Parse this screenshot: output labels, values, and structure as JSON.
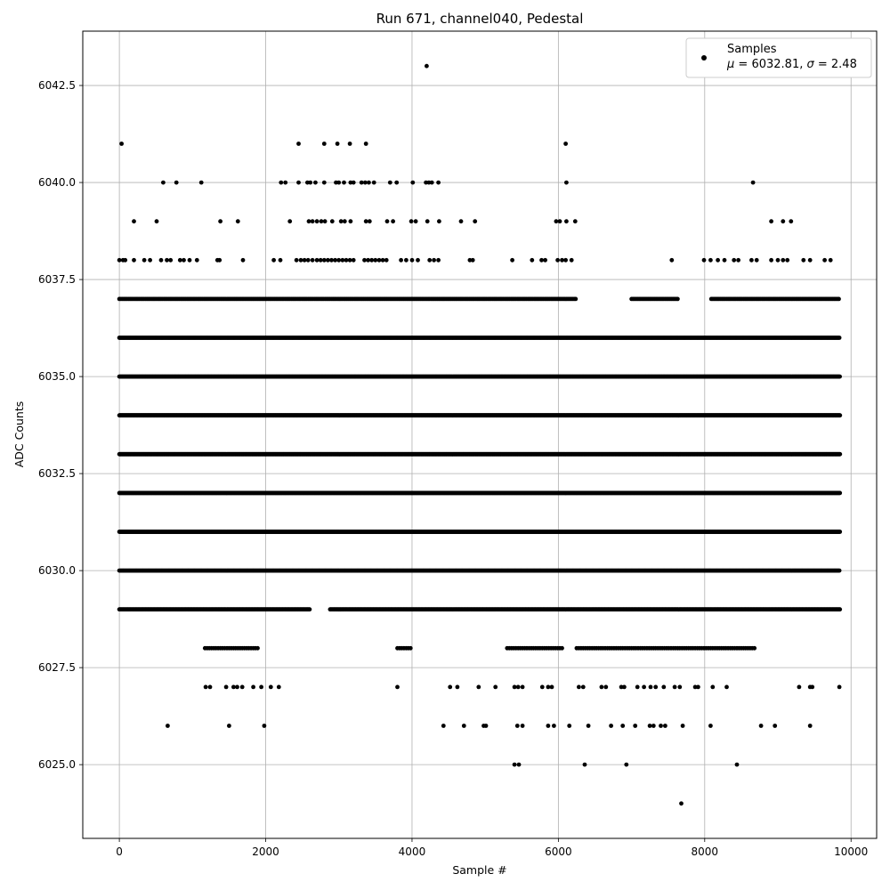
{
  "chart_data": {
    "type": "scatter",
    "title": "Run 671, channel040, Pedestal",
    "xlabel": "Sample #",
    "ylabel": "ADC Counts",
    "xlim": [
      -500,
      10350
    ],
    "ylim": [
      6023.1,
      6043.9
    ],
    "grid": true,
    "legend_placement": "top-right",
    "marker_color": "#000000",
    "x_tick_labels": [
      "0",
      "2000",
      "4000",
      "6000",
      "8000",
      "10000"
    ],
    "y_tick_labels": [
      "6025.0",
      "6027.5",
      "6030.0",
      "6032.5",
      "6035.0",
      "6037.5",
      "6040.0",
      "6042.5"
    ],
    "legend": {
      "marker": "dot",
      "series_name": "Samples",
      "stats": {
        "mu_symbol": "μ",
        "mu": "6032.81",
        "sigma_symbol": "σ",
        "sigma": "2.48"
      }
    },
    "series": [
      {
        "name": "Samples",
        "points": [
          [
            4200,
            6043
          ],
          [
            30,
            6041
          ],
          [
            2450,
            6041
          ],
          [
            2800,
            6041
          ],
          [
            2980,
            6041
          ],
          [
            3150,
            6041
          ],
          [
            3370,
            6041
          ],
          [
            6100,
            6041
          ],
          [
            600,
            6040
          ],
          [
            780,
            6040
          ],
          [
            1120,
            6040
          ],
          [
            2210,
            6040
          ],
          [
            2270,
            6040
          ],
          [
            2450,
            6040
          ],
          [
            2570,
            6040
          ],
          [
            2610,
            6040
          ],
          [
            2680,
            6040
          ],
          [
            2800,
            6040
          ],
          [
            2960,
            6040
          ],
          [
            3000,
            6040
          ],
          [
            3070,
            6040
          ],
          [
            3160,
            6040
          ],
          [
            3200,
            6040
          ],
          [
            3310,
            6040
          ],
          [
            3360,
            6040
          ],
          [
            3410,
            6040
          ],
          [
            3480,
            6040
          ],
          [
            3700,
            6040
          ],
          [
            3790,
            6040
          ],
          [
            4010,
            6040
          ],
          [
            4190,
            6040
          ],
          [
            4230,
            6040
          ],
          [
            4270,
            6040
          ],
          [
            4360,
            6040
          ],
          [
            6110,
            6040
          ],
          [
            8660,
            6040
          ],
          [
            200,
            6039
          ],
          [
            510,
            6039
          ],
          [
            1380,
            6039
          ],
          [
            1620,
            6039
          ],
          [
            2330,
            6039
          ],
          [
            2590,
            6039
          ],
          [
            2640,
            6039
          ],
          [
            2700,
            6039
          ],
          [
            2760,
            6039
          ],
          [
            2810,
            6039
          ],
          [
            2910,
            6039
          ],
          [
            3030,
            6039
          ],
          [
            3080,
            6039
          ],
          [
            3160,
            6039
          ],
          [
            3370,
            6039
          ],
          [
            3420,
            6039
          ],
          [
            3660,
            6039
          ],
          [
            3740,
            6039
          ],
          [
            3990,
            6039
          ],
          [
            4050,
            6039
          ],
          [
            4210,
            6039
          ],
          [
            4370,
            6039
          ],
          [
            4670,
            6039
          ],
          [
            4860,
            6039
          ],
          [
            5970,
            6039
          ],
          [
            6020,
            6039
          ],
          [
            6110,
            6039
          ],
          [
            6230,
            6039
          ],
          [
            8910,
            6039
          ],
          [
            9070,
            6039
          ],
          [
            9180,
            6039
          ],
          [
            0,
            6038
          ],
          [
            50,
            6038
          ],
          [
            80,
            6038
          ],
          [
            200,
            6038
          ],
          [
            340,
            6038
          ],
          [
            420,
            6038
          ],
          [
            570,
            6038
          ],
          [
            650,
            6038
          ],
          [
            700,
            6038
          ],
          [
            830,
            6038
          ],
          [
            880,
            6038
          ],
          [
            960,
            6038
          ],
          [
            1060,
            6038
          ],
          [
            1340,
            6038
          ],
          [
            1370,
            6038
          ],
          [
            1690,
            6038
          ],
          [
            2110,
            6038
          ],
          [
            2200,
            6038
          ],
          [
            2420,
            6038
          ],
          [
            2480,
            6038
          ],
          [
            2530,
            6038
          ],
          [
            2580,
            6038
          ],
          [
            2640,
            6038
          ],
          [
            2700,
            6038
          ],
          [
            2750,
            6038
          ],
          [
            2800,
            6038
          ],
          [
            2850,
            6038
          ],
          [
            2900,
            6038
          ],
          [
            2950,
            6038
          ],
          [
            3000,
            6038
          ],
          [
            3050,
            6038
          ],
          [
            3100,
            6038
          ],
          [
            3150,
            6038
          ],
          [
            3200,
            6038
          ],
          [
            3350,
            6038
          ],
          [
            3400,
            6038
          ],
          [
            3450,
            6038
          ],
          [
            3500,
            6038
          ],
          [
            3550,
            6038
          ],
          [
            3600,
            6038
          ],
          [
            3650,
            6038
          ],
          [
            3850,
            6038
          ],
          [
            3920,
            6038
          ],
          [
            4000,
            6038
          ],
          [
            4080,
            6038
          ],
          [
            4240,
            6038
          ],
          [
            4300,
            6038
          ],
          [
            4360,
            6038
          ],
          [
            4790,
            6038
          ],
          [
            4830,
            6038
          ],
          [
            5370,
            6038
          ],
          [
            5640,
            6038
          ],
          [
            5770,
            6038
          ],
          [
            5820,
            6038
          ],
          [
            5990,
            6038
          ],
          [
            6050,
            6038
          ],
          [
            6100,
            6038
          ],
          [
            6180,
            6038
          ],
          [
            7550,
            6038
          ],
          [
            7990,
            6038
          ],
          [
            8080,
            6038
          ],
          [
            8180,
            6038
          ],
          [
            8270,
            6038
          ],
          [
            8400,
            6038
          ],
          [
            8460,
            6038
          ],
          [
            8640,
            6038
          ],
          [
            8710,
            6038
          ],
          [
            8910,
            6038
          ],
          [
            9000,
            6038
          ],
          [
            9070,
            6038
          ],
          [
            9130,
            6038
          ],
          [
            9350,
            6038
          ],
          [
            9440,
            6038
          ],
          [
            9640,
            6038
          ],
          [
            9720,
            6038
          ],
          [
            1180,
            6027
          ],
          [
            1240,
            6027
          ],
          [
            1460,
            6027
          ],
          [
            1560,
            6027
          ],
          [
            1610,
            6027
          ],
          [
            1680,
            6027
          ],
          [
            1830,
            6027
          ],
          [
            1940,
            6027
          ],
          [
            2070,
            6027
          ],
          [
            2180,
            6027
          ],
          [
            3800,
            6027
          ],
          [
            4520,
            6027
          ],
          [
            4620,
            6027
          ],
          [
            4910,
            6027
          ],
          [
            5140,
            6027
          ],
          [
            5400,
            6027
          ],
          [
            5450,
            6027
          ],
          [
            5510,
            6027
          ],
          [
            5780,
            6027
          ],
          [
            5860,
            6027
          ],
          [
            5910,
            6027
          ],
          [
            6280,
            6027
          ],
          [
            6340,
            6027
          ],
          [
            6590,
            6027
          ],
          [
            6650,
            6027
          ],
          [
            6860,
            6027
          ],
          [
            6900,
            6027
          ],
          [
            7080,
            6027
          ],
          [
            7170,
            6027
          ],
          [
            7260,
            6027
          ],
          [
            7330,
            6027
          ],
          [
            7440,
            6027
          ],
          [
            7590,
            6027
          ],
          [
            7660,
            6027
          ],
          [
            7870,
            6027
          ],
          [
            7910,
            6027
          ],
          [
            8110,
            6027
          ],
          [
            8300,
            6027
          ],
          [
            9290,
            6027
          ],
          [
            9440,
            6027
          ],
          [
            9470,
            6027
          ],
          [
            9840,
            6027
          ],
          [
            660,
            6026
          ],
          [
            1500,
            6026
          ],
          [
            1980,
            6026
          ],
          [
            4430,
            6026
          ],
          [
            4710,
            6026
          ],
          [
            4980,
            6026
          ],
          [
            5010,
            6026
          ],
          [
            5440,
            6026
          ],
          [
            5510,
            6026
          ],
          [
            5860,
            6026
          ],
          [
            5940,
            6026
          ],
          [
            6150,
            6026
          ],
          [
            6410,
            6026
          ],
          [
            6720,
            6026
          ],
          [
            6880,
            6026
          ],
          [
            7050,
            6026
          ],
          [
            7250,
            6026
          ],
          [
            7300,
            6026
          ],
          [
            7400,
            6026
          ],
          [
            7460,
            6026
          ],
          [
            7700,
            6026
          ],
          [
            8080,
            6026
          ],
          [
            8770,
            6026
          ],
          [
            8960,
            6026
          ],
          [
            9440,
            6026
          ],
          [
            5400,
            6025
          ],
          [
            5460,
            6025
          ],
          [
            6360,
            6025
          ],
          [
            6930,
            6025
          ],
          [
            8440,
            6025
          ],
          [
            7680,
            6024
          ]
        ],
        "dense_rows": [
          {
            "y": 6037,
            "segments": [
              [
                0,
                4420
              ],
              [
                4430,
                6250
              ],
              [
                7000,
                7650
              ],
              [
                8090,
                9850
              ]
            ],
            "spacing": 21
          },
          {
            "y": 6036,
            "segments": [
              [
                0,
                9850
              ]
            ],
            "spacing": 12
          },
          {
            "y": 6035,
            "segments": [
              [
                0,
                9850
              ]
            ],
            "spacing": 9
          },
          {
            "y": 6034,
            "segments": [
              [
                0,
                9850
              ]
            ],
            "spacing": 7
          },
          {
            "y": 6033,
            "segments": [
              [
                0,
                9850
              ]
            ],
            "spacing": 7
          },
          {
            "y": 6032,
            "segments": [
              [
                0,
                9850
              ]
            ],
            "spacing": 8
          },
          {
            "y": 6031,
            "segments": [
              [
                0,
                9850
              ]
            ],
            "spacing": 8
          },
          {
            "y": 6030,
            "segments": [
              [
                0,
                9850
              ]
            ],
            "spacing": 12
          },
          {
            "y": 6029,
            "segments": [
              [
                0,
                2600
              ],
              [
                2880,
                9850
              ]
            ],
            "spacing": 13
          },
          {
            "y": 6028,
            "segments": [
              [
                1170,
                1900
              ],
              [
                3800,
                4000
              ],
              [
                5300,
                6050
              ],
              [
                6250,
                8700
              ]
            ],
            "spacing": 30
          }
        ]
      }
    ]
  }
}
